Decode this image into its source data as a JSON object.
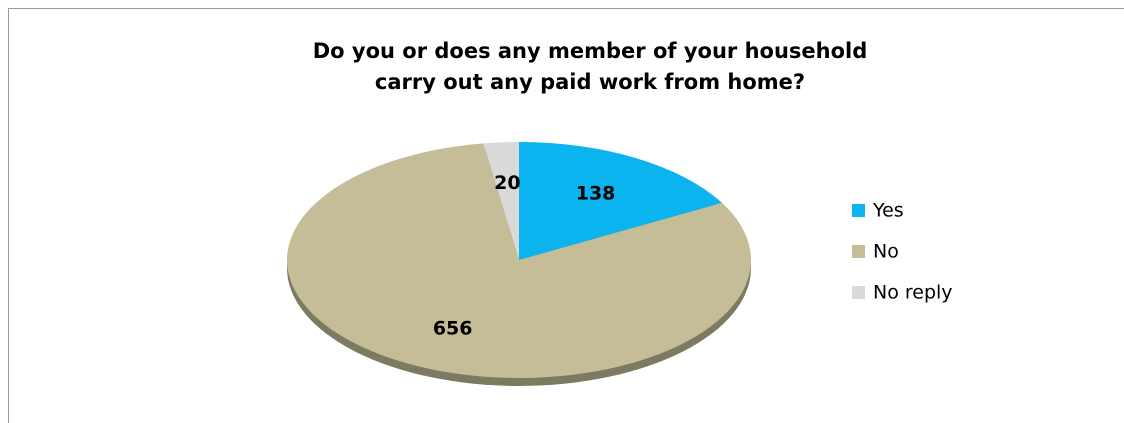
{
  "chart_data": {
    "type": "pie",
    "title": [
      "Do you or does any member of your household",
      "carry out any paid work from home?"
    ],
    "categories": [
      "Yes",
      "No",
      "No reply"
    ],
    "values": [
      138,
      656,
      20
    ],
    "colors": [
      "#0bb4ef",
      "#c4bd97",
      "#d9d9d9"
    ],
    "legend": "right"
  }
}
